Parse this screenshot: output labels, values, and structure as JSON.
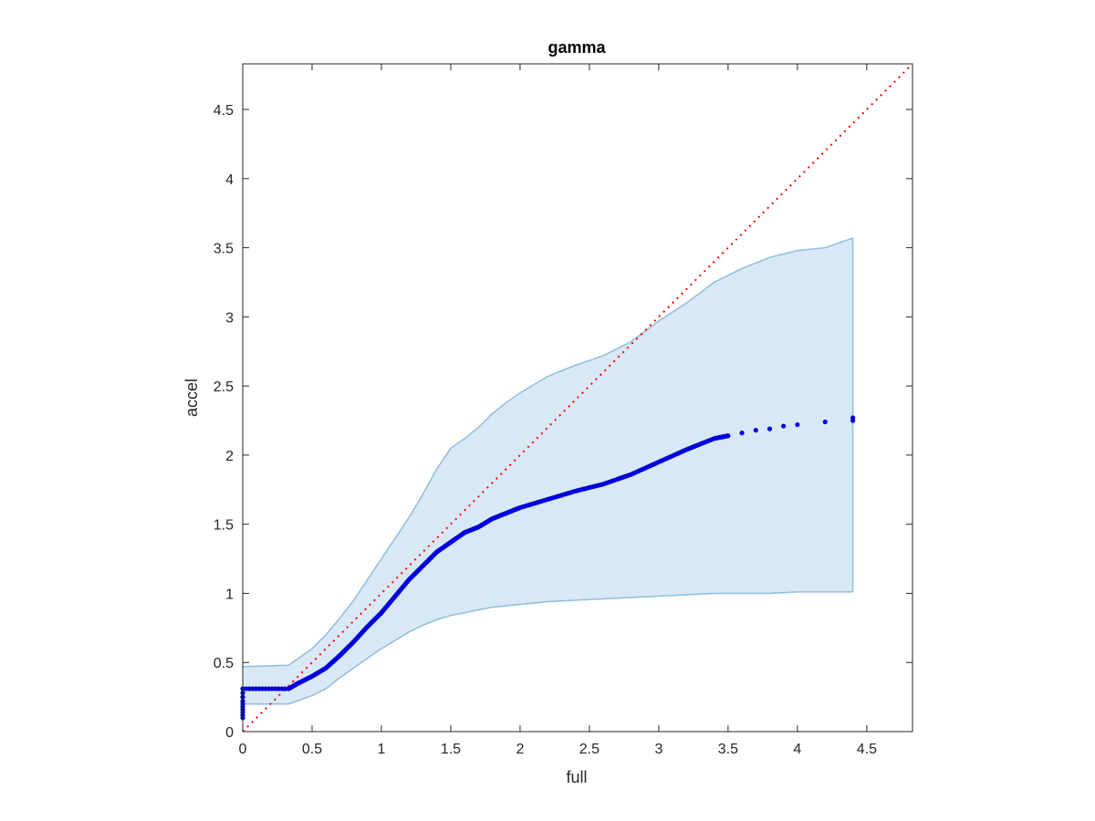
{
  "chart_data": {
    "type": "scatter",
    "title": "gamma",
    "xlabel": "full",
    "ylabel": "accel",
    "xlim": [
      0,
      4.83
    ],
    "ylim": [
      0,
      4.83
    ],
    "xticks": [
      0,
      0.5,
      1,
      1.5,
      2,
      2.5,
      3,
      3.5,
      4,
      4.5
    ],
    "yticks": [
      0,
      0.5,
      1,
      1.5,
      2,
      2.5,
      3,
      3.5,
      4,
      4.5
    ],
    "xtick_labels": [
      "0",
      "0.5",
      "1",
      "1.5",
      "2",
      "2.5",
      "3",
      "3.5",
      "4",
      "4.5"
    ],
    "ytick_labels": [
      "0",
      "0.5",
      "1",
      "1.5",
      "2",
      "2.5",
      "3",
      "3.5",
      "4",
      "4.5"
    ],
    "grid": false,
    "colors": {
      "band_fill": "#d9e8f5",
      "band_edge": "#8dbde0",
      "points": "#0000dd",
      "reference": "#ff0000",
      "axes": "#262626"
    },
    "band": {
      "x": [
        0,
        0.33,
        0.5,
        0.6,
        0.7,
        0.8,
        0.9,
        1.0,
        1.1,
        1.2,
        1.3,
        1.4,
        1.5,
        1.6,
        1.7,
        1.8,
        1.9,
        2.0,
        2.2,
        2.4,
        2.6,
        2.8,
        3.0,
        3.2,
        3.4,
        3.6,
        3.8,
        4.0,
        4.2,
        4.4
      ],
      "upper": [
        0.47,
        0.48,
        0.6,
        0.7,
        0.82,
        0.95,
        1.1,
        1.25,
        1.4,
        1.55,
        1.72,
        1.9,
        2.05,
        2.12,
        2.2,
        2.3,
        2.38,
        2.45,
        2.57,
        2.65,
        2.72,
        2.82,
        2.97,
        3.1,
        3.25,
        3.35,
        3.43,
        3.48,
        3.5,
        3.57
      ],
      "lower": [
        0.2,
        0.2,
        0.26,
        0.31,
        0.39,
        0.46,
        0.53,
        0.6,
        0.66,
        0.72,
        0.77,
        0.81,
        0.84,
        0.86,
        0.88,
        0.9,
        0.91,
        0.92,
        0.94,
        0.95,
        0.96,
        0.97,
        0.98,
        0.99,
        1.0,
        1.0,
        1.0,
        1.01,
        1.01,
        1.01
      ]
    },
    "series": [
      {
        "x": [
          0,
          0,
          0,
          0,
          0,
          0,
          0,
          0,
          0,
          0,
          0.33,
          0.4,
          0.5,
          0.6,
          0.7,
          0.8,
          0.9,
          1.0,
          1.1,
          1.2,
          1.3,
          1.4,
          1.5,
          1.6,
          1.7,
          1.8,
          1.9,
          2.0,
          2.2,
          2.4,
          2.6,
          2.8,
          3.0,
          3.2,
          3.4,
          3.5,
          3.6,
          3.7,
          3.8,
          3.9,
          4.0,
          4.2,
          4.4,
          4.4
        ],
        "y": [
          0.1,
          0.12,
          0.14,
          0.16,
          0.18,
          0.2,
          0.22,
          0.25,
          0.28,
          0.31,
          0.31,
          0.35,
          0.4,
          0.46,
          0.55,
          0.65,
          0.76,
          0.86,
          0.98,
          1.1,
          1.2,
          1.3,
          1.37,
          1.44,
          1.48,
          1.54,
          1.58,
          1.62,
          1.68,
          1.74,
          1.79,
          1.86,
          1.95,
          2.04,
          2.12,
          2.14,
          2.16,
          2.18,
          2.19,
          2.21,
          2.22,
          2.24,
          2.25,
          2.27
        ]
      }
    ],
    "reference_line": {
      "x": [
        0,
        4.83
      ],
      "y": [
        0,
        4.83
      ]
    }
  }
}
